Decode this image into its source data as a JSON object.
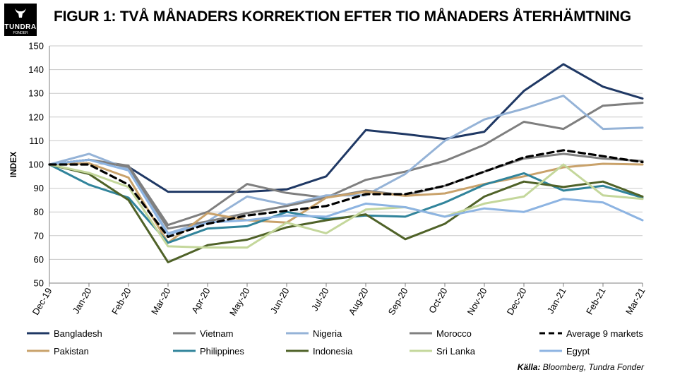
{
  "logo": {
    "name": "TUNDRA",
    "sub": "FONDER"
  },
  "title": "FIGUR 1: TVÅ MÅNADERS KORREKTION EFTER TIO MÅNADERS ÅTERHÄMTNING",
  "source_label": "Källa:",
  "source_text": " Bloomberg, Tundra Fonder",
  "chart_data": {
    "type": "line",
    "title": "FIGUR 1: TVÅ MÅNADERS KORREKTION EFTER TIO MÅNADERS ÅTERHÄMTNING",
    "xlabel": "",
    "ylabel": "INDEX",
    "ylim": [
      50,
      150
    ],
    "yticks": [
      50,
      60,
      70,
      80,
      90,
      100,
      110,
      120,
      130,
      140,
      150
    ],
    "grid": true,
    "legend_position": "bottom",
    "categories": [
      "Dec-19",
      "Jan-20",
      "Feb-20",
      "Mar-20",
      "Apr-20",
      "May-20",
      "Jun-20",
      "Jul-20",
      "Aug-20",
      "Sep-20",
      "Oct-20",
      "Nov-20",
      "Dec-20",
      "Jan-21",
      "Feb-21",
      "Mar-21"
    ],
    "series": [
      {
        "name": "Bangladesh",
        "color": "#1f3864",
        "dash": false,
        "values": [
          100,
          102,
          99,
          88.5,
          88.5,
          88.5,
          89.5,
          95,
          114.5,
          112.8,
          110.8,
          113.8,
          131,
          142.3,
          132.8,
          127.8
        ]
      },
      {
        "name": "Vietnam",
        "color": "#7f7f7f",
        "dash": false,
        "values": [
          100,
          102,
          99.5,
          74.5,
          80,
          91.8,
          88,
          86,
          93.5,
          97,
          101.5,
          108.3,
          118,
          115,
          124.8,
          126
        ]
      },
      {
        "name": "Nigeria",
        "color": "#95b3d7",
        "dash": false,
        "values": [
          100,
          104.5,
          98,
          71,
          76,
          86.5,
          83,
          87,
          87,
          96,
          110,
          119,
          123.5,
          129,
          115,
          115.5
        ]
      },
      {
        "name": "Morocco",
        "color": "#808080",
        "dash": false,
        "values": [
          100,
          102,
          99,
          73,
          76,
          79.5,
          82.5,
          86,
          89,
          87,
          91,
          97,
          102.5,
          104.5,
          102.5,
          101.5
        ]
      },
      {
        "name": "Average 9 markets",
        "color": "#000000",
        "dash": true,
        "values": [
          100,
          100,
          91.5,
          69.5,
          75,
          78.5,
          80.5,
          82.5,
          87.5,
          87.5,
          91,
          97,
          103,
          106,
          103.5,
          101
        ]
      },
      {
        "name": "Pakistan",
        "color": "#c9a26b",
        "dash": false,
        "values": [
          100,
          100.5,
          94.5,
          67,
          79.5,
          76.5,
          75.5,
          86,
          88.5,
          86.8,
          87.8,
          91.8,
          95,
          98.8,
          100.3,
          100
        ]
      },
      {
        "name": "Philippines",
        "color": "#31849b",
        "dash": false,
        "values": [
          100,
          91.5,
          86,
          67,
          73,
          74,
          80,
          77,
          78.5,
          78,
          84,
          91.5,
          96.3,
          89,
          91,
          86
        ]
      },
      {
        "name": "Indonesia",
        "color": "#4f6228",
        "dash": false,
        "values": [
          100,
          96,
          85,
          58.8,
          66,
          68.3,
          73.5,
          76.5,
          79,
          68.5,
          75,
          86.5,
          92.8,
          90.5,
          92.8,
          86.5
        ]
      },
      {
        "name": "Sri Lanka",
        "color": "#c4d79b",
        "dash": false,
        "values": [
          100,
          96.5,
          90.5,
          65.5,
          65,
          65,
          75.5,
          71,
          81,
          82,
          78,
          83.5,
          86.5,
          100,
          87,
          85.5
        ]
      },
      {
        "name": "Egypt",
        "color": "#8db4e2",
        "dash": false,
        "values": [
          100,
          102,
          97.5,
          70.5,
          75.5,
          76.5,
          78.5,
          78,
          83.5,
          82,
          78,
          81.5,
          80,
          85.5,
          84,
          76.5
        ]
      }
    ]
  }
}
